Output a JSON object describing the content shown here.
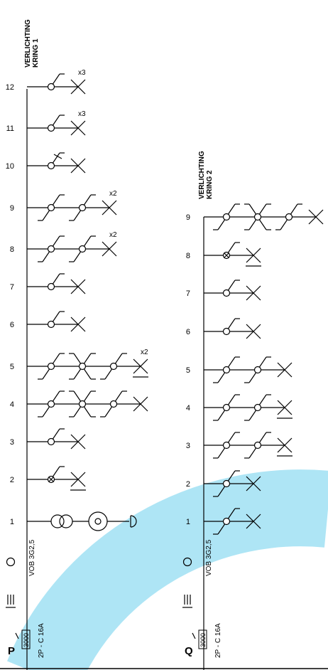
{
  "colors": {
    "line": "#000000",
    "watermark": "#aee5f5",
    "background": "#ffffff"
  },
  "bottom_bus": true,
  "circuits": [
    {
      "id": "P",
      "title_line1": "VERLICHTING",
      "title_line2": "KRING 1",
      "letter": "P",
      "cable_label": "VOB 3G2,5",
      "breaker_label": "2P - C 16A",
      "differential_label": "3000",
      "rows": [
        {
          "number": "12",
          "symbols": [
            "switch-single"
          ],
          "lamp": "lamp",
          "multiplier": "x3"
        },
        {
          "number": "11",
          "symbols": [
            "switch-single"
          ],
          "lamp": "lamp",
          "multiplier": "x3"
        },
        {
          "number": "10",
          "symbols": [
            "switch-pull"
          ],
          "lamp": "lamp",
          "multiplier": ""
        },
        {
          "number": "9",
          "symbols": [
            "switch-double",
            "switch-double"
          ],
          "lamp": "lamp",
          "multiplier": "x2"
        },
        {
          "number": "8",
          "symbols": [
            "switch-double",
            "switch-double"
          ],
          "lamp": "lamp",
          "multiplier": "x2"
        },
        {
          "number": "7",
          "symbols": [
            "switch-single"
          ],
          "lamp": "lamp",
          "multiplier": ""
        },
        {
          "number": "6",
          "symbols": [
            "switch-single"
          ],
          "lamp": "lamp",
          "multiplier": ""
        },
        {
          "number": "5",
          "symbols": [
            "switch-double",
            "switch-cross",
            "switch-double"
          ],
          "lamp": "lamp-underlined",
          "multiplier": "x2"
        },
        {
          "number": "4",
          "symbols": [
            "switch-double",
            "switch-cross",
            "switch-double"
          ],
          "lamp": "lamp",
          "multiplier": ""
        },
        {
          "number": "3",
          "symbols": [
            "switch-single"
          ],
          "lamp": "lamp",
          "multiplier": ""
        },
        {
          "number": "2",
          "symbols": [
            "switch-pilot"
          ],
          "lamp": "lamp-underlined",
          "multiplier": ""
        },
        {
          "number": "1",
          "symbols": [
            "transformer",
            "doorbell-push"
          ],
          "lamp": "bell",
          "multiplier": ""
        }
      ]
    },
    {
      "id": "Q",
      "title_line1": "VERLICHTING",
      "title_line2": "KRING 2",
      "letter": "Q",
      "cable_label": "VOB 3G2,5",
      "breaker_label": "2P - C 16A",
      "differential_label": "3000",
      "rows": [
        {
          "number": "9",
          "symbols": [
            "switch-double",
            "switch-cross",
            "switch-double"
          ],
          "lamp": "lamp",
          "multiplier": ""
        },
        {
          "number": "8",
          "symbols": [
            "switch-pilot"
          ],
          "lamp": "lamp-underlined",
          "multiplier": ""
        },
        {
          "number": "7",
          "symbols": [
            "switch-single"
          ],
          "lamp": "lamp",
          "multiplier": ""
        },
        {
          "number": "6",
          "symbols": [
            "switch-single"
          ],
          "lamp": "lamp",
          "multiplier": ""
        },
        {
          "number": "5",
          "symbols": [
            "switch-double",
            "switch-double"
          ],
          "lamp": "lamp",
          "multiplier": ""
        },
        {
          "number": "4",
          "symbols": [
            "switch-double",
            "switch-double"
          ],
          "lamp": "lamp-underlined",
          "multiplier": ""
        },
        {
          "number": "3",
          "symbols": [
            "switch-double",
            "switch-double"
          ],
          "lamp": "lamp-underlined",
          "multiplier": ""
        },
        {
          "number": "2",
          "symbols": [
            "switch-double"
          ],
          "lamp": "lamp",
          "multiplier": ""
        },
        {
          "number": "1",
          "symbols": [
            "switch-double"
          ],
          "lamp": "lamp",
          "multiplier": ""
        }
      ]
    }
  ]
}
